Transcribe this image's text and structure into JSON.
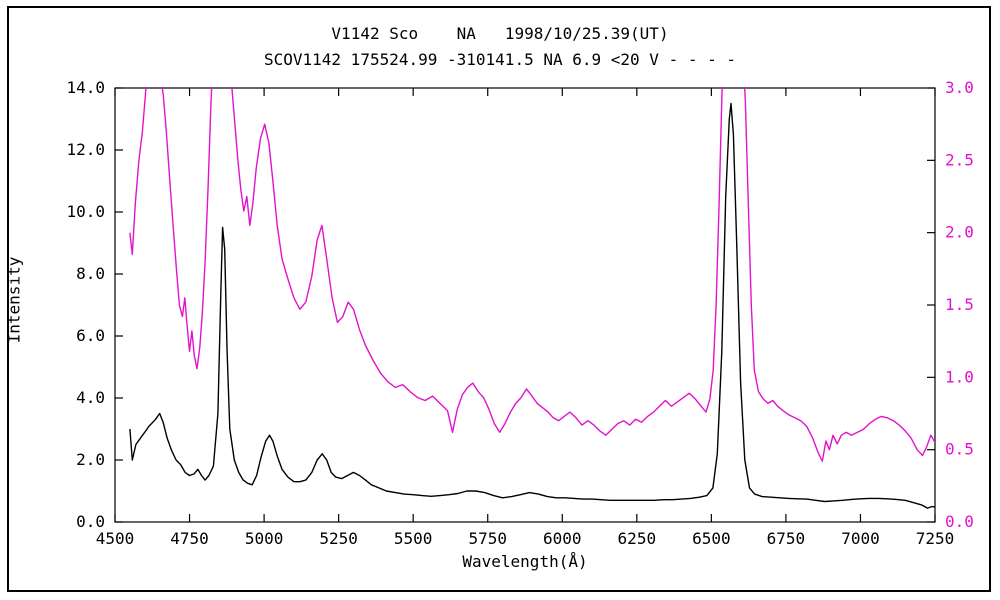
{
  "chart_data": {
    "type": "line",
    "title": "V1142 Sco    NA   1998/10/25.39(UT)",
    "subtitle": "SCOV1142 175524.99 -310141.5 NA 6.9 <20 V - - - -",
    "xlabel": "Wavelength(Å)",
    "ylabel": "Intensity",
    "grid": false,
    "legend": "none",
    "x_range": [
      4500,
      7250
    ],
    "x_ticks": [
      {
        "v": 4500,
        "label": "4500"
      },
      {
        "v": 4750,
        "label": "4750"
      },
      {
        "v": 5000,
        "label": "5000"
      },
      {
        "v": 5250,
        "label": "5250"
      },
      {
        "v": 5500,
        "label": "5500"
      },
      {
        "v": 5750,
        "label": "5750"
      },
      {
        "v": 6000,
        "label": "6000"
      },
      {
        "v": 6250,
        "label": "6250"
      },
      {
        "v": 6500,
        "label": "6500"
      },
      {
        "v": 6750,
        "label": "6750"
      },
      {
        "v": 7000,
        "label": "7000"
      },
      {
        "v": 7250,
        "label": "7250"
      }
    ],
    "left_axis": {
      "range": [
        0,
        14
      ],
      "color": "#000000",
      "ticks": [
        {
          "v": 0,
          "label": "0.0"
        },
        {
          "v": 2,
          "label": "2.0"
        },
        {
          "v": 4,
          "label": "4.0"
        },
        {
          "v": 6,
          "label": "6.0"
        },
        {
          "v": 8,
          "label": "8.0"
        },
        {
          "v": 10,
          "label": "10.0"
        },
        {
          "v": 12,
          "label": "12.0"
        },
        {
          "v": 14,
          "label": "14.0"
        }
      ]
    },
    "right_axis": {
      "range": [
        0,
        3
      ],
      "color": "#e312cd",
      "ticks": [
        {
          "v": 0.0,
          "label": "0.0"
        },
        {
          "v": 0.5,
          "label": "0.5"
        },
        {
          "v": 1.0,
          "label": "1.0"
        },
        {
          "v": 1.5,
          "label": "1.5"
        },
        {
          "v": 2.0,
          "label": "2.0"
        },
        {
          "v": 2.5,
          "label": "2.5"
        },
        {
          "v": 3.0,
          "label": "3.0"
        }
      ]
    },
    "series": [
      {
        "name": "spectrum-intensity-black",
        "axis": "left",
        "color": "#000000",
        "points": [
          [
            4550,
            3.0
          ],
          [
            4558,
            2.0
          ],
          [
            4570,
            2.5
          ],
          [
            4585,
            2.7
          ],
          [
            4600,
            2.9
          ],
          [
            4615,
            3.1
          ],
          [
            4635,
            3.3
          ],
          [
            4650,
            3.5
          ],
          [
            4662,
            3.2
          ],
          [
            4675,
            2.7
          ],
          [
            4690,
            2.3
          ],
          [
            4705,
            2.0
          ],
          [
            4720,
            1.85
          ],
          [
            4735,
            1.6
          ],
          [
            4750,
            1.5
          ],
          [
            4765,
            1.55
          ],
          [
            4778,
            1.7
          ],
          [
            4790,
            1.5
          ],
          [
            4802,
            1.35
          ],
          [
            4815,
            1.5
          ],
          [
            4830,
            1.8
          ],
          [
            4845,
            3.5
          ],
          [
            4855,
            7.5
          ],
          [
            4861,
            9.5
          ],
          [
            4868,
            8.8
          ],
          [
            4876,
            5.5
          ],
          [
            4885,
            3.0
          ],
          [
            4900,
            2.0
          ],
          [
            4915,
            1.6
          ],
          [
            4930,
            1.35
          ],
          [
            4945,
            1.25
          ],
          [
            4960,
            1.2
          ],
          [
            4975,
            1.5
          ],
          [
            4990,
            2.1
          ],
          [
            5005,
            2.6
          ],
          [
            5018,
            2.8
          ],
          [
            5030,
            2.6
          ],
          [
            5045,
            2.1
          ],
          [
            5060,
            1.7
          ],
          [
            5080,
            1.45
          ],
          [
            5100,
            1.3
          ],
          [
            5120,
            1.3
          ],
          [
            5140,
            1.35
          ],
          [
            5160,
            1.6
          ],
          [
            5178,
            2.0
          ],
          [
            5195,
            2.2
          ],
          [
            5210,
            2.0
          ],
          [
            5225,
            1.6
          ],
          [
            5240,
            1.45
          ],
          [
            5260,
            1.4
          ],
          [
            5280,
            1.5
          ],
          [
            5300,
            1.6
          ],
          [
            5320,
            1.5
          ],
          [
            5340,
            1.35
          ],
          [
            5360,
            1.2
          ],
          [
            5385,
            1.1
          ],
          [
            5410,
            1.0
          ],
          [
            5440,
            0.95
          ],
          [
            5470,
            0.9
          ],
          [
            5500,
            0.88
          ],
          [
            5530,
            0.85
          ],
          [
            5560,
            0.83
          ],
          [
            5590,
            0.85
          ],
          [
            5620,
            0.88
          ],
          [
            5650,
            0.92
          ],
          [
            5680,
            1.0
          ],
          [
            5710,
            1.0
          ],
          [
            5740,
            0.95
          ],
          [
            5770,
            0.85
          ],
          [
            5800,
            0.78
          ],
          [
            5830,
            0.82
          ],
          [
            5860,
            0.88
          ],
          [
            5890,
            0.95
          ],
          [
            5920,
            0.9
          ],
          [
            5950,
            0.82
          ],
          [
            5980,
            0.78
          ],
          [
            6010,
            0.78
          ],
          [
            6040,
            0.76
          ],
          [
            6070,
            0.74
          ],
          [
            6100,
            0.74
          ],
          [
            6130,
            0.72
          ],
          [
            6160,
            0.7
          ],
          [
            6190,
            0.7
          ],
          [
            6220,
            0.7
          ],
          [
            6250,
            0.7
          ],
          [
            6280,
            0.7
          ],
          [
            6310,
            0.7
          ],
          [
            6340,
            0.72
          ],
          [
            6370,
            0.72
          ],
          [
            6400,
            0.74
          ],
          [
            6430,
            0.76
          ],
          [
            6460,
            0.8
          ],
          [
            6485,
            0.85
          ],
          [
            6505,
            1.1
          ],
          [
            6520,
            2.2
          ],
          [
            6535,
            5.5
          ],
          [
            6548,
            10.5
          ],
          [
            6560,
            13.0
          ],
          [
            6566,
            13.5
          ],
          [
            6574,
            12.5
          ],
          [
            6585,
            9.0
          ],
          [
            6598,
            4.5
          ],
          [
            6612,
            2.0
          ],
          [
            6628,
            1.1
          ],
          [
            6645,
            0.9
          ],
          [
            6670,
            0.82
          ],
          [
            6700,
            0.8
          ],
          [
            6730,
            0.78
          ],
          [
            6760,
            0.76
          ],
          [
            6790,
            0.75
          ],
          [
            6820,
            0.74
          ],
          [
            6850,
            0.7
          ],
          [
            6880,
            0.66
          ],
          [
            6910,
            0.68
          ],
          [
            6940,
            0.7
          ],
          [
            6970,
            0.73
          ],
          [
            7000,
            0.75
          ],
          [
            7030,
            0.76
          ],
          [
            7060,
            0.76
          ],
          [
            7090,
            0.75
          ],
          [
            7120,
            0.73
          ],
          [
            7150,
            0.7
          ],
          [
            7180,
            0.62
          ],
          [
            7205,
            0.55
          ],
          [
            7225,
            0.45
          ],
          [
            7240,
            0.5
          ],
          [
            7250,
            0.48
          ]
        ]
      },
      {
        "name": "spectrum-intensity-magenta",
        "axis": "right",
        "color": "#e312cd",
        "points": [
          [
            4550,
            2.0
          ],
          [
            4558,
            1.85
          ],
          [
            4568,
            2.2
          ],
          [
            4580,
            2.5
          ],
          [
            4592,
            2.7
          ],
          [
            4602,
            2.95
          ],
          [
            4612,
            3.3
          ],
          [
            4640,
            3.5
          ],
          [
            4652,
            3.1
          ],
          [
            4662,
            2.95
          ],
          [
            4672,
            2.7
          ],
          [
            4684,
            2.35
          ],
          [
            4695,
            2.05
          ],
          [
            4706,
            1.75
          ],
          [
            4716,
            1.5
          ],
          [
            4726,
            1.42
          ],
          [
            4734,
            1.55
          ],
          [
            4742,
            1.35
          ],
          [
            4750,
            1.18
          ],
          [
            4758,
            1.32
          ],
          [
            4766,
            1.15
          ],
          [
            4775,
            1.06
          ],
          [
            4784,
            1.2
          ],
          [
            4793,
            1.45
          ],
          [
            4802,
            1.8
          ],
          [
            4812,
            2.3
          ],
          [
            4822,
            2.9
          ],
          [
            4832,
            3.4
          ],
          [
            4862,
            3.6
          ],
          [
            4880,
            3.3
          ],
          [
            4892,
            3.0
          ],
          [
            4902,
            2.75
          ],
          [
            4912,
            2.5
          ],
          [
            4922,
            2.3
          ],
          [
            4932,
            2.15
          ],
          [
            4942,
            2.25
          ],
          [
            4952,
            2.05
          ],
          [
            4962,
            2.2
          ],
          [
            4974,
            2.45
          ],
          [
            4988,
            2.65
          ],
          [
            5002,
            2.75
          ],
          [
            5016,
            2.62
          ],
          [
            5030,
            2.35
          ],
          [
            5044,
            2.05
          ],
          [
            5060,
            1.82
          ],
          [
            5080,
            1.68
          ],
          [
            5100,
            1.55
          ],
          [
            5120,
            1.47
          ],
          [
            5140,
            1.52
          ],
          [
            5160,
            1.7
          ],
          [
            5178,
            1.95
          ],
          [
            5194,
            2.05
          ],
          [
            5210,
            1.82
          ],
          [
            5228,
            1.55
          ],
          [
            5246,
            1.38
          ],
          [
            5264,
            1.42
          ],
          [
            5282,
            1.52
          ],
          [
            5300,
            1.47
          ],
          [
            5320,
            1.33
          ],
          [
            5340,
            1.22
          ],
          [
            5365,
            1.12
          ],
          [
            5390,
            1.03
          ],
          [
            5415,
            0.97
          ],
          [
            5440,
            0.93
          ],
          [
            5465,
            0.95
          ],
          [
            5490,
            0.9
          ],
          [
            5515,
            0.86
          ],
          [
            5540,
            0.84
          ],
          [
            5565,
            0.87
          ],
          [
            5590,
            0.82
          ],
          [
            5615,
            0.77
          ],
          [
            5632,
            0.62
          ],
          [
            5648,
            0.78
          ],
          [
            5665,
            0.88
          ],
          [
            5682,
            0.93
          ],
          [
            5700,
            0.96
          ],
          [
            5718,
            0.9
          ],
          [
            5736,
            0.86
          ],
          [
            5754,
            0.78
          ],
          [
            5772,
            0.68
          ],
          [
            5790,
            0.62
          ],
          [
            5808,
            0.68
          ],
          [
            5826,
            0.76
          ],
          [
            5844,
            0.82
          ],
          [
            5862,
            0.86
          ],
          [
            5880,
            0.92
          ],
          [
            5898,
            0.87
          ],
          [
            5916,
            0.82
          ],
          [
            5934,
            0.79
          ],
          [
            5952,
            0.76
          ],
          [
            5970,
            0.72
          ],
          [
            5988,
            0.7
          ],
          [
            6006,
            0.73
          ],
          [
            6026,
            0.76
          ],
          [
            6046,
            0.72
          ],
          [
            6066,
            0.67
          ],
          [
            6086,
            0.7
          ],
          [
            6106,
            0.67
          ],
          [
            6126,
            0.63
          ],
          [
            6146,
            0.6
          ],
          [
            6166,
            0.64
          ],
          [
            6186,
            0.68
          ],
          [
            6206,
            0.7
          ],
          [
            6226,
            0.67
          ],
          [
            6246,
            0.71
          ],
          [
            6266,
            0.69
          ],
          [
            6286,
            0.73
          ],
          [
            6306,
            0.76
          ],
          [
            6326,
            0.8
          ],
          [
            6346,
            0.84
          ],
          [
            6366,
            0.8
          ],
          [
            6386,
            0.83
          ],
          [
            6406,
            0.86
          ],
          [
            6426,
            0.89
          ],
          [
            6446,
            0.85
          ],
          [
            6466,
            0.8
          ],
          [
            6482,
            0.76
          ],
          [
            6495,
            0.85
          ],
          [
            6506,
            1.05
          ],
          [
            6516,
            1.5
          ],
          [
            6526,
            2.2
          ],
          [
            6536,
            3.0
          ],
          [
            6544,
            3.5
          ],
          [
            6600,
            3.5
          ],
          [
            6614,
            2.9
          ],
          [
            6624,
            2.2
          ],
          [
            6634,
            1.5
          ],
          [
            6644,
            1.05
          ],
          [
            6658,
            0.9
          ],
          [
            6674,
            0.85
          ],
          [
            6690,
            0.82
          ],
          [
            6706,
            0.84
          ],
          [
            6722,
            0.8
          ],
          [
            6740,
            0.77
          ],
          [
            6760,
            0.74
          ],
          [
            6780,
            0.72
          ],
          [
            6800,
            0.7
          ],
          [
            6820,
            0.66
          ],
          [
            6840,
            0.58
          ],
          [
            6858,
            0.48
          ],
          [
            6872,
            0.42
          ],
          [
            6884,
            0.56
          ],
          [
            6896,
            0.5
          ],
          [
            6908,
            0.6
          ],
          [
            6922,
            0.54
          ],
          [
            6936,
            0.6
          ],
          [
            6952,
            0.62
          ],
          [
            6970,
            0.6
          ],
          [
            6990,
            0.62
          ],
          [
            7010,
            0.64
          ],
          [
            7030,
            0.68
          ],
          [
            7050,
            0.71
          ],
          [
            7070,
            0.73
          ],
          [
            7090,
            0.72
          ],
          [
            7110,
            0.7
          ],
          [
            7130,
            0.67
          ],
          [
            7150,
            0.63
          ],
          [
            7170,
            0.58
          ],
          [
            7190,
            0.5
          ],
          [
            7208,
            0.46
          ],
          [
            7222,
            0.52
          ],
          [
            7236,
            0.6
          ],
          [
            7250,
            0.55
          ]
        ]
      }
    ]
  }
}
